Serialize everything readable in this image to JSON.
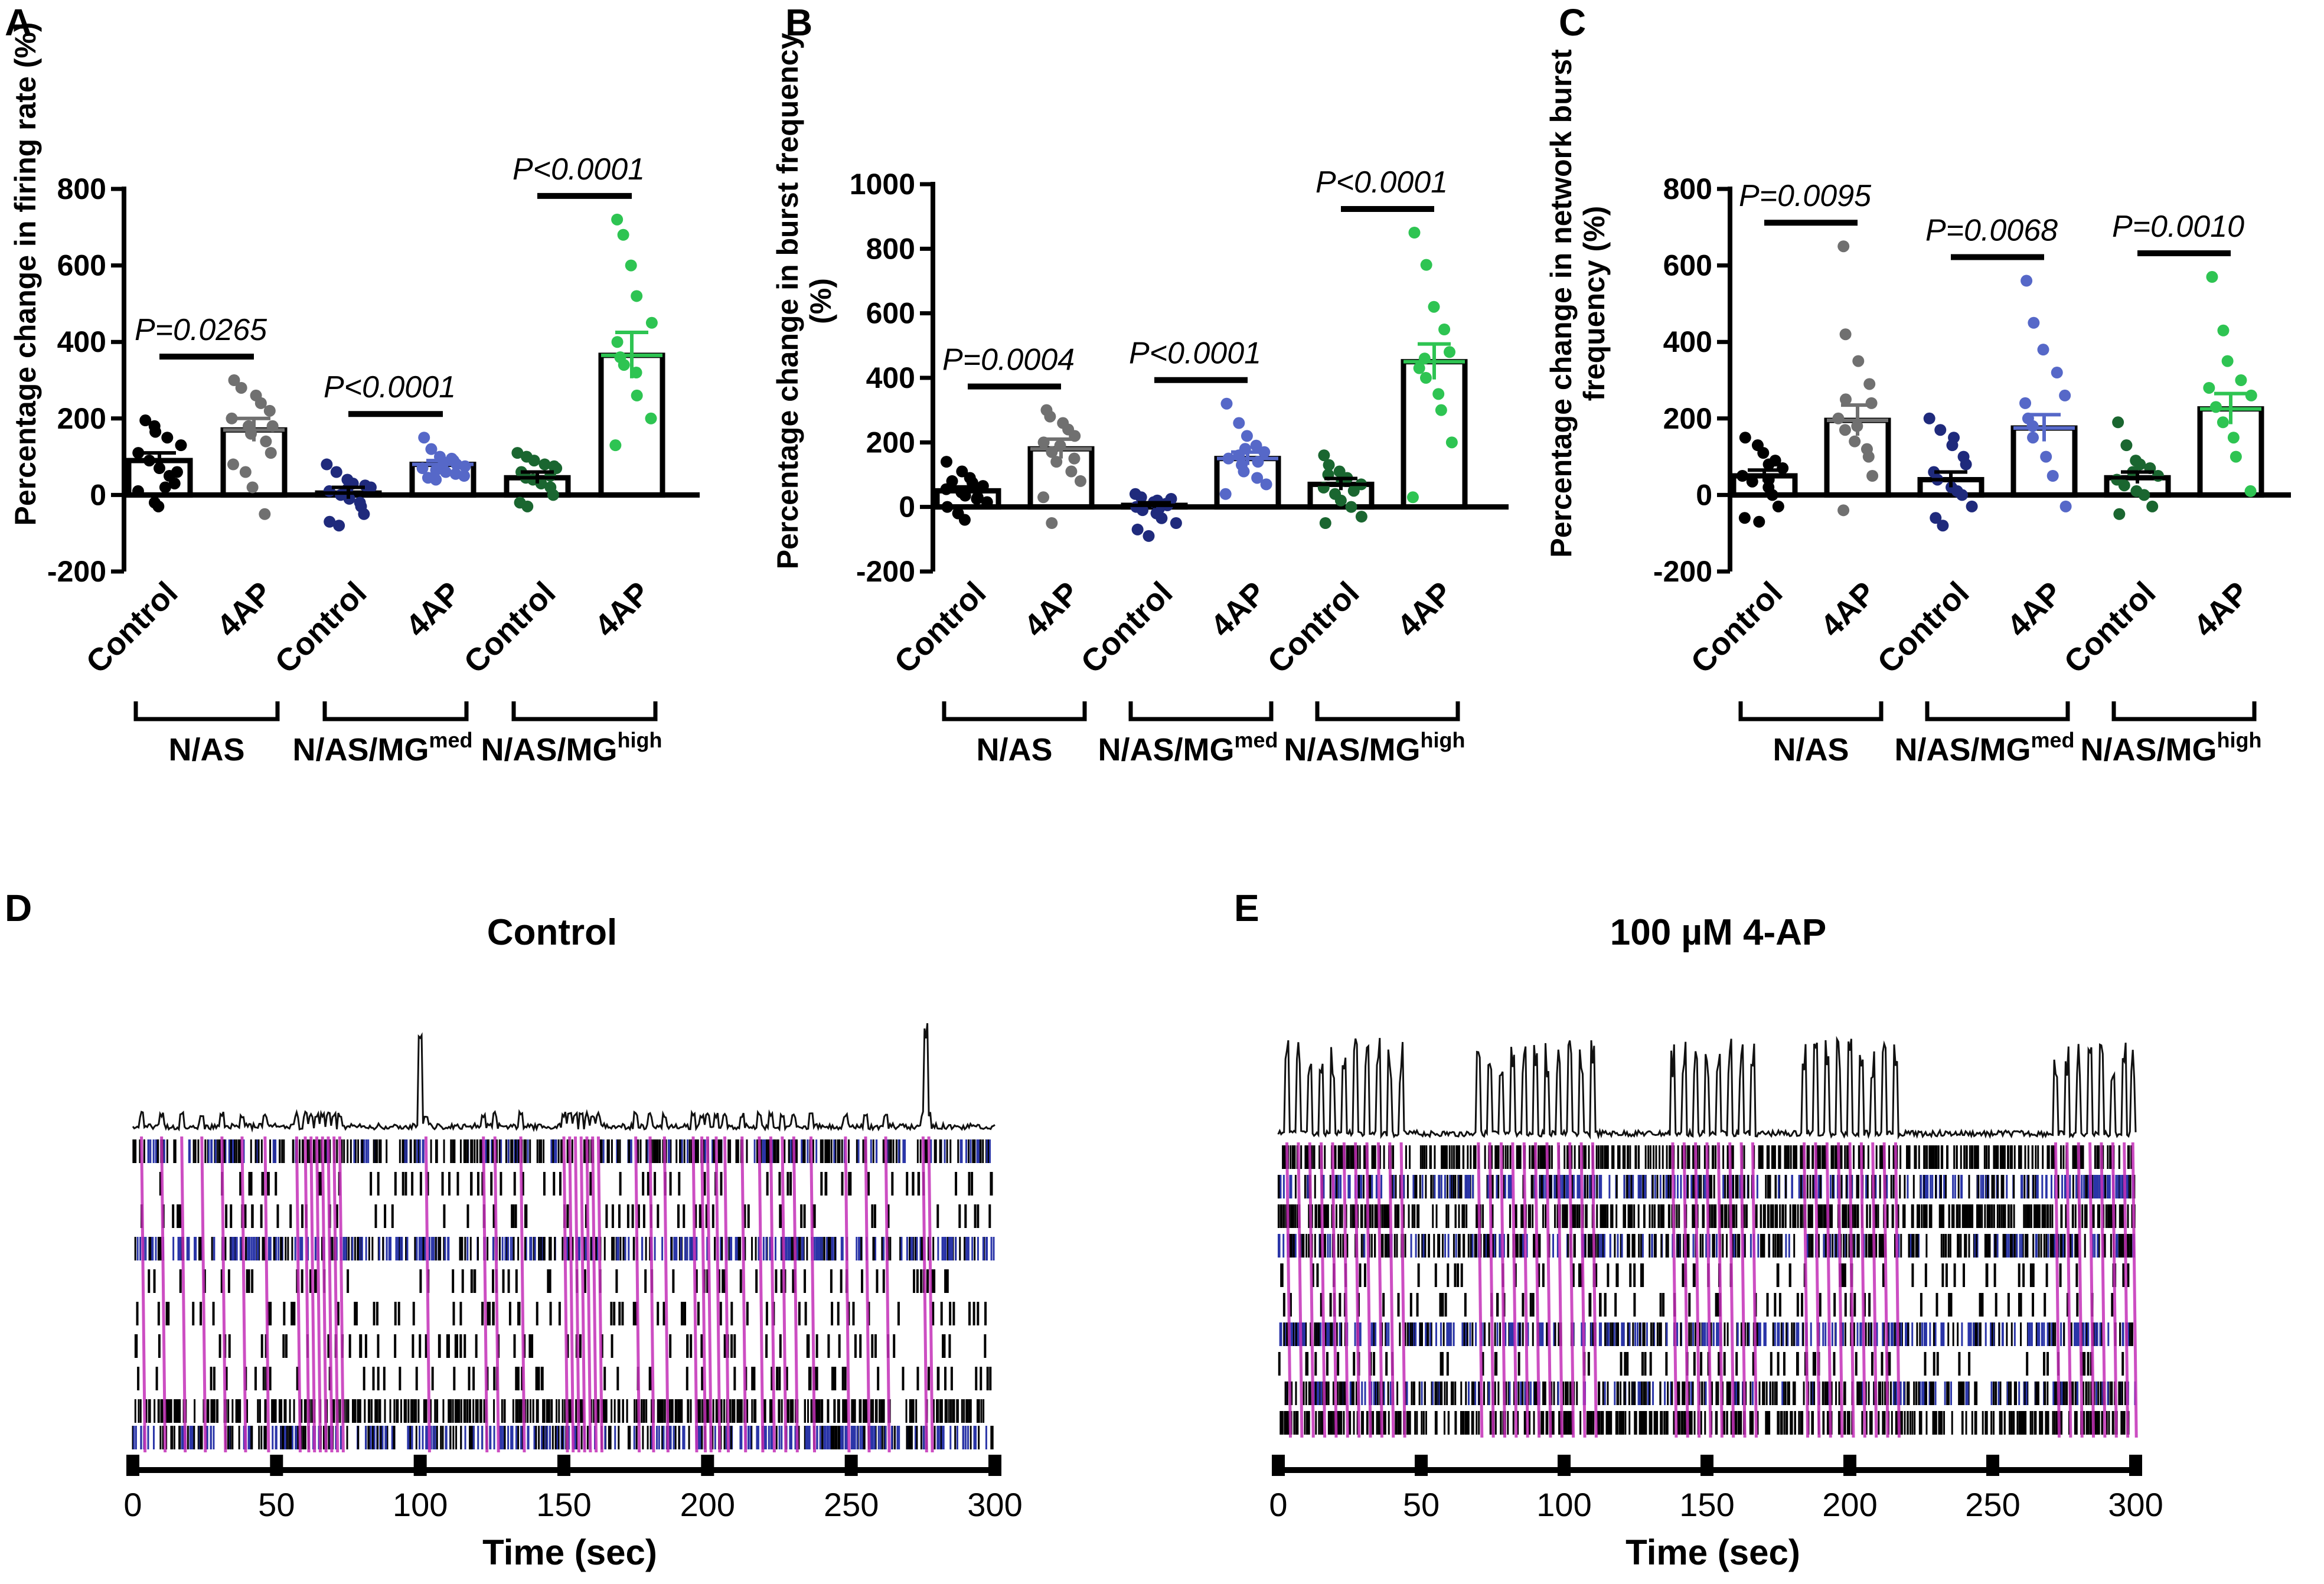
{
  "panels": {
    "A": "A",
    "B": "B",
    "C": "C",
    "D": "D",
    "E": "E"
  },
  "colors": {
    "na_control": "#000000",
    "na_4ap": "#707070",
    "med_control": "#1f2a7c",
    "med_4ap": "#5668c8",
    "high_control": "#1a6630",
    "high_4ap": "#2ec452",
    "raster_sync": "#c430b8",
    "raster_blue": "#2a35a8"
  },
  "chart_data": [
    {
      "id": "A",
      "type": "bar",
      "ylabel": "Percentage change in firing rate (%)",
      "ylim": [
        -200,
        800
      ],
      "yticks": [
        -200,
        0,
        200,
        400,
        600,
        800
      ],
      "categories": [
        "Control",
        "4AP",
        "Control",
        "4AP",
        "Control",
        "4AP"
      ],
      "groups": [
        {
          "label": "N/AS",
          "sup": ""
        },
        {
          "label": "N/AS/MG",
          "sup": "med"
        },
        {
          "label": "N/AS/MG",
          "sup": "high"
        }
      ],
      "means": [
        90,
        170,
        5,
        80,
        45,
        365
      ],
      "sems": [
        20,
        30,
        15,
        10,
        15,
        60
      ],
      "points": [
        [
          195,
          180,
          165,
          150,
          130,
          110,
          90,
          70,
          50,
          30,
          10,
          -20,
          -30,
          20,
          60
        ],
        [
          300,
          280,
          260,
          240,
          220,
          200,
          180,
          160,
          140,
          110,
          80,
          60,
          20,
          -50,
          180
        ],
        [
          80,
          60,
          40,
          30,
          20,
          10,
          0,
          -10,
          -30,
          -50,
          -70,
          -80,
          15,
          -20,
          25
        ],
        [
          150,
          120,
          100,
          90,
          80,
          70,
          65,
          60,
          55,
          50,
          45,
          40,
          85,
          95,
          75
        ],
        [
          110,
          100,
          90,
          80,
          70,
          60,
          45,
          30,
          20,
          0,
          -20,
          -30,
          40,
          50,
          75
        ],
        [
          720,
          680,
          600,
          520,
          450,
          400,
          360,
          320,
          260,
          200,
          130,
          340
        ]
      ],
      "pvalues": [
        "P=0.0265",
        "P<0.0001",
        "P<0.0001"
      ]
    },
    {
      "id": "B",
      "type": "bar",
      "ylabel": "Percentage change in burst frequency (%)",
      "ylim": [
        -200,
        1000
      ],
      "yticks": [
        -200,
        0,
        200,
        400,
        600,
        800,
        1000
      ],
      "categories": [
        "Control",
        "4AP",
        "Control",
        "4AP",
        "Control",
        "4AP"
      ],
      "groups": [
        {
          "label": "N/AS",
          "sup": ""
        },
        {
          "label": "N/AS/MG",
          "sup": "med"
        },
        {
          "label": "N/AS/MG",
          "sup": "high"
        }
      ],
      "means": [
        50,
        180,
        5,
        150,
        70,
        450
      ],
      "sems": [
        12,
        30,
        8,
        20,
        18,
        55
      ],
      "points": [
        [
          140,
          110,
          90,
          75,
          65,
          55,
          45,
          35,
          25,
          15,
          0,
          -20,
          -40,
          30,
          60,
          80
        ],
        [
          300,
          280,
          260,
          240,
          220,
          200,
          170,
          140,
          110,
          80,
          30,
          -50,
          190,
          150
        ],
        [
          40,
          30,
          20,
          10,
          5,
          0,
          -10,
          -20,
          -35,
          -50,
          -70,
          -90,
          15,
          -5,
          25
        ],
        [
          320,
          260,
          220,
          190,
          170,
          150,
          130,
          110,
          90,
          70,
          40,
          160,
          180,
          140
        ],
        [
          160,
          130,
          110,
          90,
          70,
          60,
          40,
          20,
          0,
          -30,
          -50,
          100,
          80,
          50
        ],
        [
          850,
          750,
          620,
          550,
          480,
          430,
          400,
          350,
          300,
          200,
          30,
          460
        ]
      ],
      "pvalues": [
        "P=0.0004",
        "P<0.0001",
        "P<0.0001"
      ]
    },
    {
      "id": "C",
      "type": "bar",
      "ylabel": "Percentage change in network burst frequency (%)",
      "ylim": [
        -200,
        800
      ],
      "yticks": [
        -200,
        0,
        200,
        400,
        600,
        800
      ],
      "categories": [
        "Control",
        "4AP",
        "Control",
        "4AP",
        "Control",
        "4AP"
      ],
      "groups": [
        {
          "label": "N/AS",
          "sup": ""
        },
        {
          "label": "N/AS/MG",
          "sup": "med"
        },
        {
          "label": "N/AS/MG",
          "sup": "high"
        }
      ],
      "means": [
        50,
        195,
        40,
        175,
        45,
        225
      ],
      "sems": [
        15,
        40,
        20,
        35,
        15,
        40
      ],
      "points": [
        [
          150,
          130,
          110,
          90,
          70,
          50,
          35,
          20,
          0,
          -30,
          -60,
          -70,
          80,
          40
        ],
        [
          650,
          420,
          350,
          290,
          240,
          200,
          170,
          140,
          100,
          50,
          -40,
          250,
          180,
          120
        ],
        [
          200,
          170,
          130,
          100,
          80,
          60,
          40,
          20,
          0,
          -30,
          -60,
          -80,
          150,
          10
        ],
        [
          560,
          450,
          380,
          320,
          260,
          200,
          150,
          100,
          50,
          -30,
          240,
          180
        ],
        [
          190,
          130,
          90,
          70,
          50,
          40,
          25,
          10,
          0,
          -30,
          -50,
          60,
          80
        ],
        [
          570,
          430,
          350,
          300,
          260,
          230,
          190,
          150,
          100,
          10,
          280
        ]
      ],
      "pvalues": [
        "P=0.0095",
        "P=0.0068",
        "P=0.0010"
      ]
    },
    {
      "id": "D",
      "type": "raster",
      "title": "Control",
      "xlabel": "Time (sec)",
      "xlim": [
        0,
        300
      ],
      "xticks": [
        0,
        50,
        100,
        150,
        200,
        250,
        300
      ],
      "network_bursts_sec": [
        3,
        10,
        17,
        24,
        31,
        38,
        46,
        57,
        60,
        62,
        64,
        66,
        68,
        70,
        72,
        102,
        122,
        126,
        135,
        150,
        152,
        154,
        156,
        158,
        160,
        162,
        175,
        180,
        185,
        195,
        198,
        200,
        203,
        206,
        212,
        218,
        222,
        226,
        230,
        236,
        248,
        255,
        262,
        275,
        277
      ]
    },
    {
      "id": "E",
      "type": "raster",
      "title": "100 µM 4-AP",
      "xlabel": "Time (sec)",
      "xlim": [
        0,
        300
      ],
      "xticks": [
        0,
        50,
        100,
        150,
        200,
        250,
        300
      ],
      "network_bursts_sec": [
        3,
        7,
        11,
        15,
        19,
        23,
        27,
        31,
        35,
        39,
        43,
        70,
        74,
        78,
        82,
        86,
        90,
        94,
        98,
        102,
        106,
        110,
        138,
        142,
        146,
        150,
        154,
        158,
        162,
        166,
        184,
        188,
        192,
        196,
        200,
        204,
        208,
        212,
        216,
        272,
        276,
        280,
        284,
        288,
        292,
        296,
        299
      ]
    }
  ]
}
